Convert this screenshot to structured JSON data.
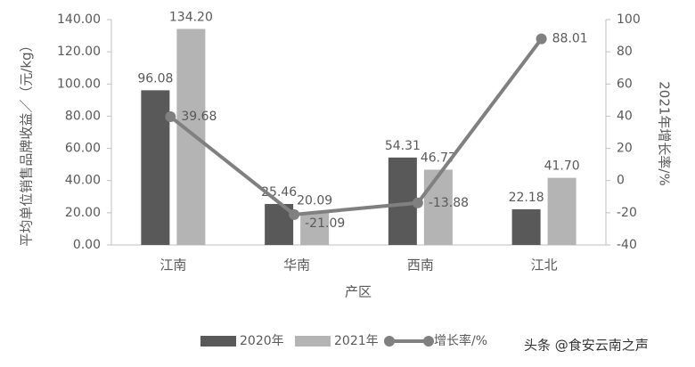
{
  "chart_data": {
    "type": "bar",
    "x_label": "产区",
    "y_label": "平均单位销售品牌收益／（元/kg）",
    "y2_label": "2021年增长率/%",
    "categories": [
      "江南",
      "华南",
      "西南",
      "江北"
    ],
    "series": [
      {
        "name": "2020年",
        "color": "#595959",
        "values": [
          96.08,
          25.46,
          54.31,
          22.18
        ],
        "value_labels": [
          "96.08",
          "25.46",
          "54.31",
          "22.18"
        ]
      },
      {
        "name": "2021年",
        "color": "#b4b4b4",
        "values": [
          134.2,
          20.09,
          46.77,
          41.7
        ],
        "value_labels": [
          "134.20",
          "20.09",
          "46.77",
          "41.70"
        ]
      },
      {
        "name": "增长率/%",
        "color": "#808080",
        "type": "line",
        "axis": "y2",
        "values": [
          39.68,
          -21.09,
          -13.88,
          88.01
        ],
        "value_labels": [
          "39.68",
          "-21.09",
          "-13.88",
          "88.01"
        ]
      }
    ],
    "ylim": [
      0,
      140
    ],
    "yticks": [
      {
        "value": 0,
        "label": "0.00"
      },
      {
        "value": 20,
        "label": "20.00"
      },
      {
        "value": 40,
        "label": "40.00"
      },
      {
        "value": 60,
        "label": "60.00"
      },
      {
        "value": 80,
        "label": "80.00"
      },
      {
        "value": 100,
        "label": "100.00"
      },
      {
        "value": 120,
        "label": "120.00"
      },
      {
        "value": 140,
        "label": "140.00"
      }
    ],
    "y2lim": [
      -40,
      100
    ],
    "y2ticks": [
      -40,
      -20,
      0,
      20,
      40,
      60,
      80,
      100
    ],
    "grid": false,
    "legend_position": "bottom",
    "watermark": "头条 @食安云南之声"
  }
}
